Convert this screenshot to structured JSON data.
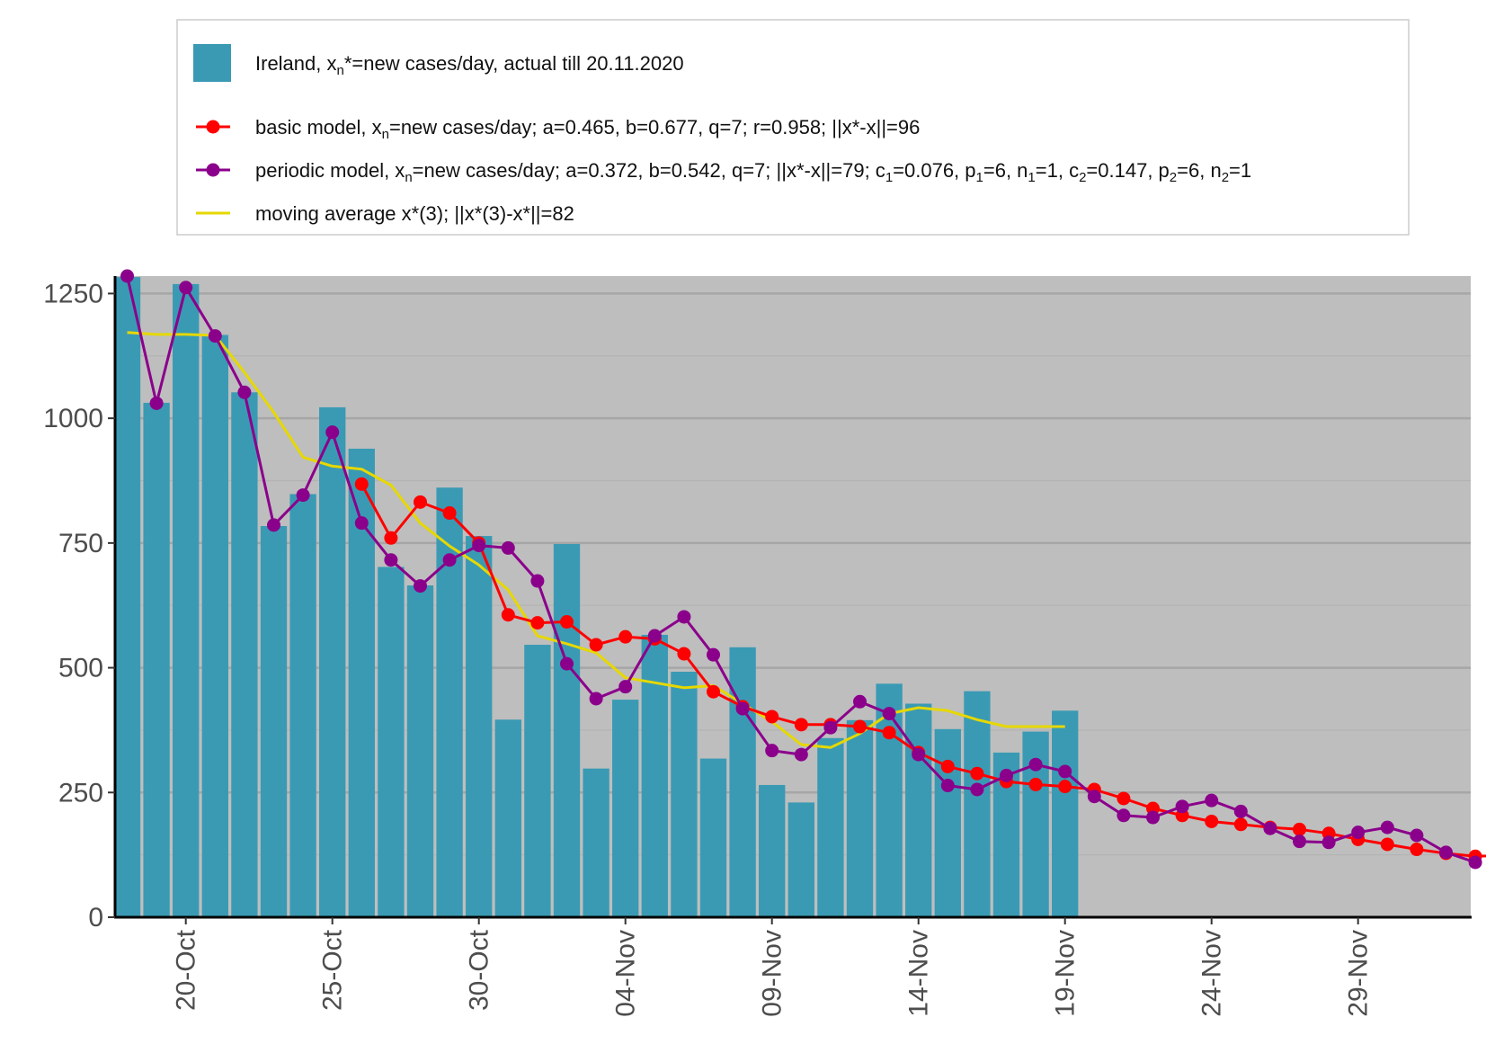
{
  "chart_data": {
    "type": "bar",
    "x_dates": [
      "18-Oct",
      "19-Oct",
      "20-Oct",
      "21-Oct",
      "22-Oct",
      "23-Oct",
      "24-Oct",
      "25-Oct",
      "26-Oct",
      "27-Oct",
      "28-Oct",
      "29-Oct",
      "30-Oct",
      "31-Oct",
      "01-Nov",
      "02-Nov",
      "03-Nov",
      "04-Nov",
      "05-Nov",
      "06-Nov",
      "07-Nov",
      "08-Nov",
      "09-Nov",
      "10-Nov",
      "11-Nov",
      "12-Nov",
      "13-Nov",
      "14-Nov",
      "15-Nov",
      "16-Nov",
      "17-Nov",
      "18-Nov",
      "19-Nov",
      "20-Nov",
      "21-Nov",
      "22-Nov",
      "23-Nov",
      "24-Nov",
      "25-Nov",
      "26-Nov",
      "27-Nov",
      "28-Nov",
      "29-Nov",
      "30-Nov",
      "01-Dec",
      "02-Dec",
      "03-Dec",
      "04-Dec"
    ],
    "x_ticks": [
      "20-Oct",
      "25-Oct",
      "30-Oct",
      "04-Nov",
      "09-Nov",
      "14-Nov",
      "19-Nov",
      "24-Nov",
      "29-Nov",
      "04-Dec"
    ],
    "y_ticks": [
      0,
      250,
      500,
      750,
      1000,
      1250
    ],
    "ylim": [
      0,
      1285
    ],
    "grid": true,
    "legend_position": "top",
    "series": [
      {
        "kind": "bar",
        "color": "#3a9ab4",
        "label_parts": [
          "Ireland, x",
          "n",
          "*=new cases/day, actual till 20.11.2020"
        ],
        "values": [
          1283,
          1031,
          1269,
          1167,
          1052,
          784,
          848,
          1022,
          939,
          702,
          665,
          861,
          764,
          396,
          546,
          748,
          298,
          436,
          566,
          492,
          318,
          541,
          265,
          230,
          359,
          395,
          468,
          428,
          377,
          453,
          330,
          372,
          414
        ]
      },
      {
        "kind": "line-points",
        "color": "#ff0000",
        "label_parts": [
          "basic model,  x",
          "n",
          "=new cases/day; a=0.465, b=0.677, q=7;  r=0.958; ||x*-x||=96"
        ],
        "values": [
          null,
          null,
          null,
          null,
          null,
          null,
          null,
          null,
          868,
          760,
          832,
          810,
          750,
          606,
          590,
          592,
          546,
          562,
          558,
          528,
          452,
          422,
          402,
          386,
          386,
          382,
          370,
          330,
          302,
          288,
          272,
          266,
          262,
          256,
          238,
          218,
          204,
          192,
          186,
          180,
          176,
          168,
          156,
          146,
          136,
          128,
          122,
          124
        ]
      },
      {
        "kind": "line-points",
        "color": "#8b008b",
        "label_parts": [
          "periodic model, x",
          "n",
          "=new cases/day; a=0.372, b=0.542, q=7; ||x*-x||=79; c",
          "1",
          "=0.076, p",
          "1",
          "=6, n",
          "1",
          "=1, c",
          "2",
          "=0.147, p",
          "2",
          "=6, n",
          "2",
          "=1"
        ],
        "values": [
          1285,
          1030,
          1262,
          1165,
          1052,
          786,
          846,
          972,
          790,
          716,
          664,
          716,
          745,
          740,
          674,
          508,
          438,
          462,
          564,
          602,
          526,
          418,
          334,
          326,
          380,
          432,
          408,
          326,
          264,
          256,
          284,
          306,
          292,
          242,
          204,
          200,
          222,
          234,
          212,
          178,
          152,
          150,
          170,
          180,
          164,
          130,
          110,
          null
        ]
      },
      {
        "kind": "line",
        "color": "#e6d800",
        "label_parts": [
          "moving average x*(3); ||x*(3)-x*||=82"
        ],
        "values": [
          1172,
          1168,
          1168,
          1166,
          1092,
          1012,
          922,
          904,
          898,
          866,
          790,
          744,
          706,
          656,
          564,
          548,
          530,
          480,
          470,
          460,
          464,
          428,
          392,
          346,
          340,
          368,
          408,
          420,
          414,
          396,
          382,
          382,
          382,
          null,
          null,
          null,
          null,
          null,
          null,
          null,
          null,
          null,
          null,
          null,
          null,
          null,
          null,
          null
        ]
      }
    ]
  }
}
